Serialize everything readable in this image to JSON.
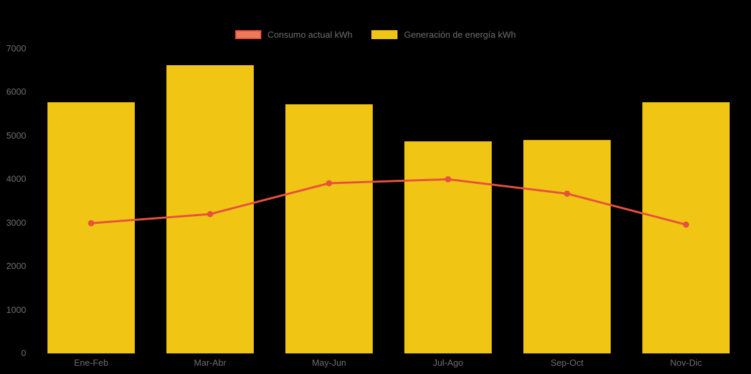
{
  "chart_data": {
    "type": "bar",
    "subtype": "combo-bar-line",
    "title": "",
    "xlabel": "",
    "ylabel": "",
    "categories": [
      "Ene-Feb",
      "Mar-Abr",
      "May-Jun",
      "Jul-Ago",
      "Sep-Oct",
      "Nov-Dic"
    ],
    "series": [
      {
        "name": "Consumo actual kWh",
        "type": "line",
        "color": "#E8513D",
        "legend_fill": "#EF7A5A",
        "values": [
          2990,
          3200,
          3910,
          4000,
          3670,
          2960
        ]
      },
      {
        "name": "Generación de energía kWh",
        "type": "bar",
        "color": "#F0C514",
        "values": [
          5770,
          6620,
          5720,
          4870,
          4900,
          5770
        ]
      }
    ],
    "ylim": [
      0,
      7000
    ],
    "yticks": [
      0,
      1000,
      2000,
      3000,
      4000,
      5000,
      6000,
      7000
    ],
    "grid": false,
    "legend_position": "top",
    "background": "#000000",
    "tick_color": "#6e6e6e"
  }
}
